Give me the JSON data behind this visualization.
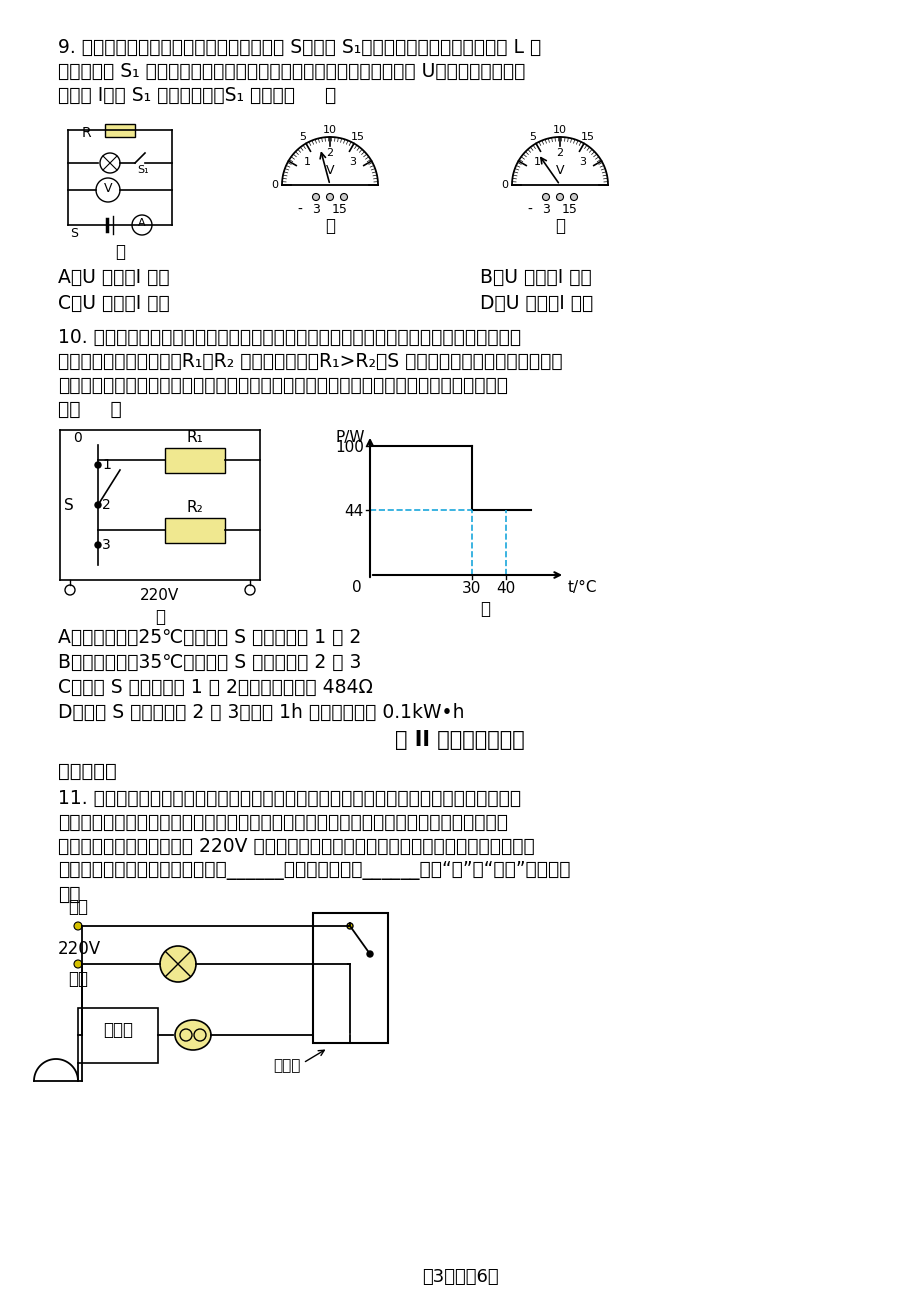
{
  "background_color": "#ffffff",
  "q9_text_lines": [
    "9. 小明按图甲所示电路图做实验，闭合开关 S、断开 S₁，电压表读数如图乙所示。将 L 支",
    "路所在开关 S₁ 闭合后，电压表示数如图丙所示，定値电阴两端电压为 U、流经定値电阴的",
    "电流为 I。与 S₁ 闭合前相比，S₁ 闭合后（     ）"
  ],
  "q9_options": [
    [
      "A．U 不变，I 变小",
      "B．U 变小，I 变大"
    ],
    [
      "C．U 不变，I 不变",
      "D．U 变小，I 变小"
    ]
  ],
  "q10_text_lines": [
    "10. 某品牌智能电热毯能够根据环境温度自动实现多档位加热，以增强人体舒适度。其等效",
    "电路简化图如图甲所示，R₁、R₂ 均为加热电阴，R₁>R₂，S 为智能开关，可根据实际选择不",
    "同电阴接入电路。某段工作过程，加热功率随环境温度变化如图乙所示。下列说法中正确的",
    "是（     ）"
  ],
  "q10_options": [
    "A．环境温度为25℃时，开关 S 连接接线柱 1 和 2",
    "B．环境温度为35℃时，开关 S 连接接线柱 2 和 3",
    "C．开关 S 连接接线柱 1 和 2，电路总电阴为 484Ω",
    "D．开关 S 连接接线柱 2 和 3，工作 1h 产生的热量为 0.1kW•h"
  ],
  "part2_title": "第 II 卷（非选择题）",
  "section2_title": "二、填空题",
  "q11_text_lines": [
    "11. 如图所示，一辆电动车需要充电，但车库里只有一盏灯，没有充电用的插座。小明打开",
    "灯的开关盒，看到里面有两个接线柱，于是他从这两个接线柱上引出两根导线，接上一个插",
    "座。接好后插上额定电压是 220V 的充电器，却发现电灯亮了，但亮度明显比平常偏暗，造",
    "成这一现象的原因是充电器与电灯______联；这时充电器______（填“能”或“不能”）正常充",
    "电。"
  ],
  "footer_text": "第3页，六6页"
}
